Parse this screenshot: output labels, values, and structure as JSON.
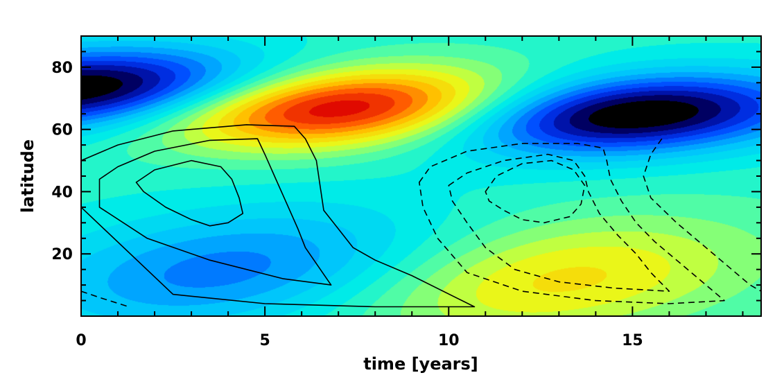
{
  "chart_data": {
    "type": "heatmap",
    "xlabel": "time [years]",
    "ylabel": "latitude",
    "xlim": [
      0,
      18.5
    ],
    "ylim": [
      0,
      90
    ],
    "x_ticks": [
      0,
      5,
      10,
      15
    ],
    "y_ticks": [
      20,
      40,
      60,
      80
    ],
    "colormap": "jet-like (black-blue-cyan-green-yellow-red-dark red)",
    "field": {
      "description_note": "color field: oblique bands drifting poleward; dark red maximum near t=7, lat=67; black/dark-blue minimum near t=15, lat=65; weaker yellow/orange maximum near t=13, lat=12; blue minimum near t=3.5, lat=15",
      "extrema": [
        {
          "type": "max",
          "t": 7,
          "lat": 67
        },
        {
          "type": "min",
          "t": 15,
          "lat": 65
        },
        {
          "type": "max",
          "t": 13,
          "lat": 12
        },
        {
          "type": "min",
          "t": 4,
          "lat": 15
        },
        {
          "type": "min",
          "t": 0,
          "lat": 73
        }
      ]
    },
    "contours": {
      "solid": [
        [
          [
            0,
            50
          ],
          [
            1,
            55
          ],
          [
            2.5,
            59.5
          ],
          [
            4.5,
            61.5
          ],
          [
            5.8,
            61
          ],
          [
            6.1,
            57
          ],
          [
            6.4,
            50
          ],
          [
            6.5,
            42
          ],
          [
            6.6,
            34
          ],
          [
            7,
            28
          ],
          [
            7.4,
            22
          ],
          [
            8,
            18
          ],
          [
            9,
            13
          ],
          [
            10.7,
            3
          ],
          [
            8,
            3
          ],
          [
            5,
            4
          ],
          [
            2.5,
            7
          ],
          [
            0,
            35
          ]
        ],
        [
          [
            0.5,
            44
          ],
          [
            1,
            48
          ],
          [
            2,
            53
          ],
          [
            3.5,
            56.5
          ],
          [
            4.8,
            57
          ],
          [
            5,
            52
          ],
          [
            5.3,
            44
          ],
          [
            5.6,
            36
          ],
          [
            5.9,
            28
          ],
          [
            6.1,
            22
          ],
          [
            6.8,
            10
          ],
          [
            5.5,
            12
          ],
          [
            3.5,
            18
          ],
          [
            1.8,
            25
          ],
          [
            0.5,
            35
          ]
        ],
        [
          [
            1.5,
            43
          ],
          [
            2,
            47
          ],
          [
            3,
            50
          ],
          [
            3.8,
            48
          ],
          [
            4.1,
            44
          ],
          [
            4.3,
            38
          ],
          [
            4.4,
            33
          ],
          [
            4,
            30
          ],
          [
            3.5,
            29
          ],
          [
            3,
            31
          ],
          [
            2.3,
            35
          ],
          [
            1.7,
            40
          ]
        ]
      ],
      "dashed": [
        [
          [
            9.2,
            43
          ],
          [
            9.5,
            48
          ],
          [
            10.5,
            53
          ],
          [
            12,
            55.5
          ],
          [
            13.5,
            55.5
          ],
          [
            14.2,
            54
          ],
          [
            14.3,
            50
          ],
          [
            14.4,
            44
          ],
          [
            14.7,
            37
          ],
          [
            15.1,
            30
          ],
          [
            15.6,
            24
          ],
          [
            16.2,
            18
          ],
          [
            16.8,
            12
          ],
          [
            17.5,
            5
          ],
          [
            16,
            4
          ],
          [
            14,
            5
          ],
          [
            12,
            8
          ],
          [
            10.5,
            14
          ],
          [
            9.7,
            25
          ],
          [
            9.3,
            35
          ]
        ],
        [
          [
            10,
            42
          ],
          [
            10.5,
            46
          ],
          [
            11.5,
            50
          ],
          [
            12.7,
            52
          ],
          [
            13.4,
            50
          ],
          [
            13.7,
            45
          ],
          [
            13.8,
            40
          ],
          [
            14.1,
            33
          ],
          [
            14.6,
            26
          ],
          [
            15.1,
            20
          ],
          [
            15.5,
            14
          ],
          [
            16,
            8
          ],
          [
            14.5,
            9
          ],
          [
            13,
            11
          ],
          [
            11.8,
            15
          ],
          [
            11,
            22
          ],
          [
            10.5,
            30
          ],
          [
            10.1,
            37
          ]
        ],
        [
          [
            11,
            40
          ],
          [
            11.3,
            45
          ],
          [
            12,
            49
          ],
          [
            12.8,
            50
          ],
          [
            13.4,
            47
          ],
          [
            13.7,
            42
          ],
          [
            13.6,
            36
          ],
          [
            13.3,
            32
          ],
          [
            12.6,
            30
          ],
          [
            12,
            31
          ],
          [
            11.5,
            34
          ],
          [
            11.1,
            37
          ]
        ],
        [
          [
            15.8,
            57
          ],
          [
            15.5,
            52
          ],
          [
            15.3,
            45
          ],
          [
            15.5,
            38
          ],
          [
            16.2,
            30
          ],
          [
            17,
            22
          ],
          [
            17.6,
            16
          ],
          [
            18.2,
            10
          ],
          [
            18.5,
            8
          ]
        ],
        [
          [
            0,
            8
          ],
          [
            0.5,
            6
          ],
          [
            1.3,
            3
          ]
        ]
      ]
    }
  }
}
